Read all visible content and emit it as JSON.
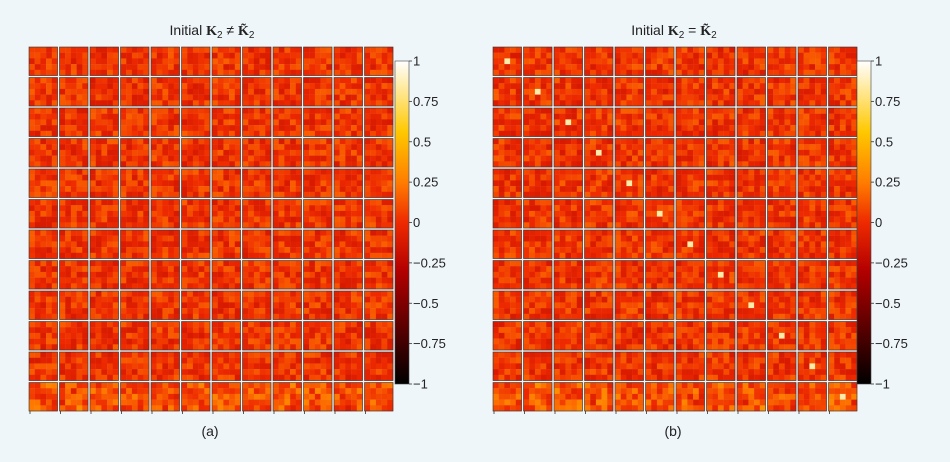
{
  "figure": {
    "caption_a": "(a)",
    "caption_b": "(b)"
  },
  "chart_data": [
    {
      "type": "heatmap",
      "panel": "a",
      "title_prefix": "Initial ",
      "title_symbol": "K",
      "title_subscript": "2",
      "title_relation": " ≠ ",
      "title_rhs_symbol": "K̃",
      "title_rhs_subscript": "2",
      "grid_rows": 12,
      "grid_cols": 12,
      "kernel_size": "5x5",
      "diagonal_highlight": false,
      "colormap": "hot (black–red–orange–yellow–white)",
      "colorbar_range": [
        -1,
        1
      ],
      "colorbar_ticks": [
        "1",
        "0.75",
        "0.5",
        "0.25",
        "0",
        "−0.25",
        "−0.5",
        "−0.75",
        "−1"
      ],
      "colorbar_tick_values": [
        1,
        0.75,
        0.5,
        0.25,
        0,
        -0.25,
        -0.5,
        -0.75,
        -1
      ]
    },
    {
      "type": "heatmap",
      "panel": "b",
      "title_prefix": "Initial ",
      "title_symbol": "K",
      "title_subscript": "2",
      "title_relation": " = ",
      "title_rhs_symbol": "K̃",
      "title_rhs_subscript": "2",
      "grid_rows": 12,
      "grid_cols": 12,
      "kernel_size": "5x5",
      "diagonal_highlight": true,
      "colormap": "hot (black–red–orange–yellow–white)",
      "colorbar_range": [
        -1,
        1
      ],
      "colorbar_ticks": [
        "1",
        "0.75",
        "0.5",
        "0.25",
        "0",
        "−0.25",
        "−0.5",
        "−0.75",
        "−1"
      ],
      "colorbar_tick_values": [
        1,
        0.75,
        0.5,
        0.25,
        0,
        -0.25,
        -0.5,
        -0.75,
        -1
      ]
    }
  ]
}
